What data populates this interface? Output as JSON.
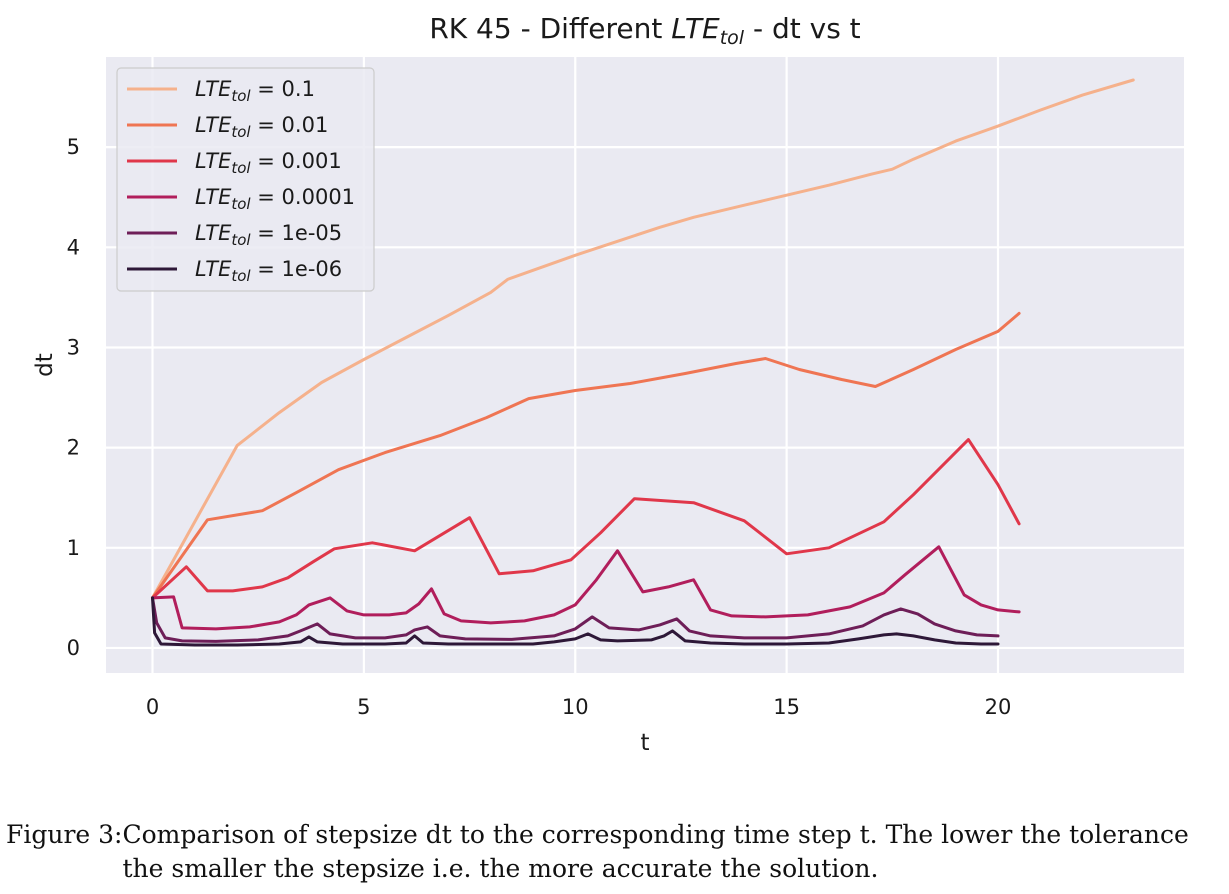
{
  "chart_data": {
    "type": "line",
    "title": {
      "prefix": "RK 45 - Different ",
      "var": "LTE",
      "sub": "tol",
      "suffix": " - dt vs t"
    },
    "xlabel": "t",
    "ylabel": "dt",
    "xlim": [
      -1.1,
      24.4
    ],
    "ylim": [
      -0.25,
      5.9
    ],
    "xticks": [
      0,
      5,
      10,
      15,
      20
    ],
    "yticks": [
      0,
      1,
      2,
      3,
      4,
      5
    ],
    "grid": true,
    "legend_position": "top-left",
    "legend_var": "LTE",
    "legend_sub": "tol",
    "series": [
      {
        "name": "0.1",
        "color": "#f5b18c",
        "points": [
          [
            0,
            0.5
          ],
          [
            2,
            2.02
          ],
          [
            3,
            2.35
          ],
          [
            4,
            2.65
          ],
          [
            5,
            2.88
          ],
          [
            6,
            3.1
          ],
          [
            7,
            3.32
          ],
          [
            8,
            3.55
          ],
          [
            8.4,
            3.68
          ],
          [
            9,
            3.77
          ],
          [
            10,
            3.92
          ],
          [
            11,
            4.06
          ],
          [
            12,
            4.2
          ],
          [
            12.8,
            4.3
          ],
          [
            14,
            4.42
          ],
          [
            15,
            4.52
          ],
          [
            16,
            4.62
          ],
          [
            17,
            4.73
          ],
          [
            17.5,
            4.78
          ],
          [
            18,
            4.88
          ],
          [
            19,
            5.06
          ],
          [
            20,
            5.21
          ],
          [
            21,
            5.37
          ],
          [
            22,
            5.52
          ],
          [
            23.2,
            5.67
          ]
        ]
      },
      {
        "name": "0.01",
        "color": "#ef7553",
        "points": [
          [
            0,
            0.5
          ],
          [
            1.3,
            1.28
          ],
          [
            2.6,
            1.37
          ],
          [
            3.4,
            1.55
          ],
          [
            4.4,
            1.78
          ],
          [
            5.5,
            1.95
          ],
          [
            6.8,
            2.12
          ],
          [
            7.9,
            2.3
          ],
          [
            8.9,
            2.49
          ],
          [
            10,
            2.57
          ],
          [
            11.3,
            2.64
          ],
          [
            12.6,
            2.74
          ],
          [
            13.8,
            2.84
          ],
          [
            14.5,
            2.89
          ],
          [
            15.3,
            2.78
          ],
          [
            16.3,
            2.68
          ],
          [
            17.1,
            2.61
          ],
          [
            18,
            2.78
          ],
          [
            19,
            2.98
          ],
          [
            20,
            3.16
          ],
          [
            20.5,
            3.34
          ]
        ]
      },
      {
        "name": "0.001",
        "color": "#e0374a",
        "points": [
          [
            0,
            0.5
          ],
          [
            0.8,
            0.81
          ],
          [
            1.3,
            0.57
          ],
          [
            1.9,
            0.57
          ],
          [
            2.6,
            0.61
          ],
          [
            3.2,
            0.7
          ],
          [
            3.8,
            0.86
          ],
          [
            4.3,
            0.99
          ],
          [
            5.2,
            1.05
          ],
          [
            6.2,
            0.97
          ],
          [
            7.5,
            1.3
          ],
          [
            8.2,
            0.74
          ],
          [
            9,
            0.77
          ],
          [
            9.9,
            0.88
          ],
          [
            10.6,
            1.15
          ],
          [
            11.4,
            1.49
          ],
          [
            12.8,
            1.45
          ],
          [
            14,
            1.27
          ],
          [
            15,
            0.94
          ],
          [
            16,
            1.0
          ],
          [
            17.3,
            1.26
          ],
          [
            18,
            1.53
          ],
          [
            19.3,
            2.08
          ],
          [
            20,
            1.63
          ],
          [
            20.5,
            1.24
          ]
        ]
      },
      {
        "name": "0.0001",
        "color": "#b11e5c",
        "points": [
          [
            0,
            0.5
          ],
          [
            0.5,
            0.51
          ],
          [
            0.7,
            0.2
          ],
          [
            1.5,
            0.19
          ],
          [
            2.3,
            0.21
          ],
          [
            3,
            0.26
          ],
          [
            3.4,
            0.33
          ],
          [
            3.7,
            0.43
          ],
          [
            4.2,
            0.5
          ],
          [
            4.6,
            0.37
          ],
          [
            5,
            0.33
          ],
          [
            5.6,
            0.33
          ],
          [
            6,
            0.35
          ],
          [
            6.3,
            0.44
          ],
          [
            6.6,
            0.59
          ],
          [
            6.9,
            0.34
          ],
          [
            7.3,
            0.27
          ],
          [
            8,
            0.25
          ],
          [
            8.8,
            0.27
          ],
          [
            9.5,
            0.33
          ],
          [
            10,
            0.43
          ],
          [
            10.5,
            0.68
          ],
          [
            11,
            0.97
          ],
          [
            11.6,
            0.56
          ],
          [
            12.2,
            0.61
          ],
          [
            12.8,
            0.68
          ],
          [
            13.2,
            0.38
          ],
          [
            13.7,
            0.32
          ],
          [
            14.5,
            0.31
          ],
          [
            15.5,
            0.33
          ],
          [
            16.5,
            0.41
          ],
          [
            17.3,
            0.55
          ],
          [
            17.8,
            0.73
          ],
          [
            18.6,
            1.01
          ],
          [
            19.2,
            0.53
          ],
          [
            19.6,
            0.43
          ],
          [
            20,
            0.38
          ],
          [
            20.5,
            0.36
          ]
        ]
      },
      {
        "name": "1e-05",
        "color": "#6e1e58",
        "points": [
          [
            0,
            0.5
          ],
          [
            0.1,
            0.25
          ],
          [
            0.3,
            0.1
          ],
          [
            0.7,
            0.07
          ],
          [
            1.5,
            0.065
          ],
          [
            2.5,
            0.08
          ],
          [
            3.2,
            0.12
          ],
          [
            3.5,
            0.17
          ],
          [
            3.9,
            0.24
          ],
          [
            4.2,
            0.14
          ],
          [
            4.8,
            0.1
          ],
          [
            5.5,
            0.1
          ],
          [
            6,
            0.13
          ],
          [
            6.2,
            0.18
          ],
          [
            6.5,
            0.21
          ],
          [
            6.8,
            0.12
          ],
          [
            7.4,
            0.09
          ],
          [
            8.5,
            0.085
          ],
          [
            9.5,
            0.12
          ],
          [
            10,
            0.19
          ],
          [
            10.4,
            0.31
          ],
          [
            10.8,
            0.2
          ],
          [
            11.5,
            0.18
          ],
          [
            12,
            0.23
          ],
          [
            12.4,
            0.29
          ],
          [
            12.7,
            0.17
          ],
          [
            13.2,
            0.12
          ],
          [
            14,
            0.1
          ],
          [
            15,
            0.1
          ],
          [
            16,
            0.14
          ],
          [
            16.8,
            0.22
          ],
          [
            17.3,
            0.33
          ],
          [
            17.7,
            0.39
          ],
          [
            18.1,
            0.34
          ],
          [
            18.5,
            0.24
          ],
          [
            19,
            0.17
          ],
          [
            19.5,
            0.13
          ],
          [
            20,
            0.12
          ]
        ]
      },
      {
        "name": "1e-06",
        "color": "#2e1838",
        "points": [
          [
            0,
            0.5
          ],
          [
            0.05,
            0.15
          ],
          [
            0.2,
            0.04
          ],
          [
            1,
            0.03
          ],
          [
            2,
            0.03
          ],
          [
            3,
            0.04
          ],
          [
            3.5,
            0.06
          ],
          [
            3.7,
            0.11
          ],
          [
            3.9,
            0.06
          ],
          [
            4.5,
            0.04
          ],
          [
            5.5,
            0.04
          ],
          [
            6,
            0.05
          ],
          [
            6.2,
            0.12
          ],
          [
            6.4,
            0.05
          ],
          [
            7,
            0.04
          ],
          [
            8,
            0.04
          ],
          [
            9,
            0.04
          ],
          [
            9.5,
            0.06
          ],
          [
            10,
            0.09
          ],
          [
            10.3,
            0.14
          ],
          [
            10.6,
            0.08
          ],
          [
            11,
            0.07
          ],
          [
            11.8,
            0.08
          ],
          [
            12.1,
            0.12
          ],
          [
            12.3,
            0.17
          ],
          [
            12.6,
            0.07
          ],
          [
            13.2,
            0.05
          ],
          [
            14,
            0.04
          ],
          [
            15,
            0.04
          ],
          [
            16,
            0.05
          ],
          [
            16.7,
            0.09
          ],
          [
            17.3,
            0.13
          ],
          [
            17.6,
            0.14
          ],
          [
            18,
            0.12
          ],
          [
            18.5,
            0.08
          ],
          [
            19,
            0.05
          ],
          [
            19.6,
            0.04
          ],
          [
            20,
            0.04
          ]
        ]
      }
    ]
  },
  "caption": {
    "lead": "Figure 3: ",
    "body": "Comparison of stepsize dt to the corresponding time step t. The lower the tolerance the smaller the stepsize i.e. the more accurate the solution."
  }
}
